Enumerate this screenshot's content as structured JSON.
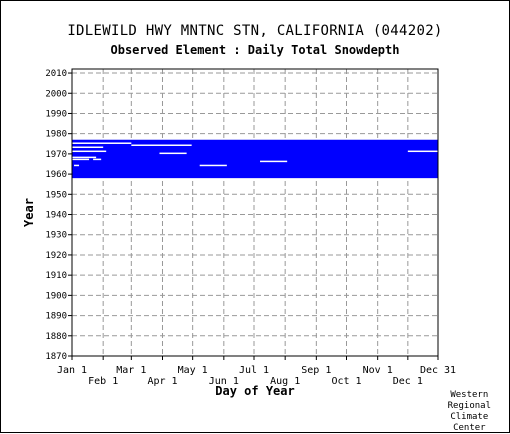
{
  "chart_data": {
    "type": "heatmap",
    "title": "IDLEWILD HWY MNTNC STN, CALIFORNIA   (044202)",
    "subtitle": "Observed Element : Daily Total Snowdepth",
    "xlabel": "Day of Year",
    "ylabel": "Year",
    "x_ticks_top_row": [
      "Jan 1",
      "Mar 1",
      "May 1",
      "Jul 1",
      "Sep 1",
      "Nov 1",
      "Dec 31"
    ],
    "x_ticks_bottom_row": [
      "Feb 1",
      "Apr 1",
      "Jun 1",
      "Aug 1",
      "Oct 1",
      "Dec 1"
    ],
    "y_ticks": [
      "1870",
      "1880",
      "1890",
      "1900",
      "1910",
      "1920",
      "1930",
      "1940",
      "1950",
      "1960",
      "1970",
      "1980",
      "1990",
      "2000",
      "2010"
    ],
    "xlim": [
      1,
      365
    ],
    "ylim": [
      1870,
      2012
    ],
    "grid": true,
    "series_color": "#0000ff",
    "records": [
      {
        "start_year": 1958,
        "end_year": 1976,
        "start_day": 1,
        "end_day": 365
      }
    ],
    "gaps": [
      {
        "year": 1964,
        "start_day": 3,
        "end_day": 8
      },
      {
        "year": 1964,
        "start_day": 128,
        "end_day": 155
      },
      {
        "year": 1966,
        "start_day": 188,
        "end_day": 215
      },
      {
        "year": 1967,
        "start_day": 1,
        "end_day": 18
      },
      {
        "year": 1967,
        "start_day": 22,
        "end_day": 30
      },
      {
        "year": 1968,
        "start_day": 1,
        "end_day": 25
      },
      {
        "year": 1970,
        "start_day": 88,
        "end_day": 115
      },
      {
        "year": 1971,
        "start_day": 1,
        "end_day": 35
      },
      {
        "year": 1971,
        "start_day": 335,
        "end_day": 365
      },
      {
        "year": 1973,
        "start_day": 1,
        "end_day": 32
      },
      {
        "year": 1974,
        "start_day": 60,
        "end_day": 120
      },
      {
        "year": 1975,
        "start_day": 1,
        "end_day": 60
      }
    ],
    "source_label": "Western\nRegional\nClimate\nCenter"
  }
}
